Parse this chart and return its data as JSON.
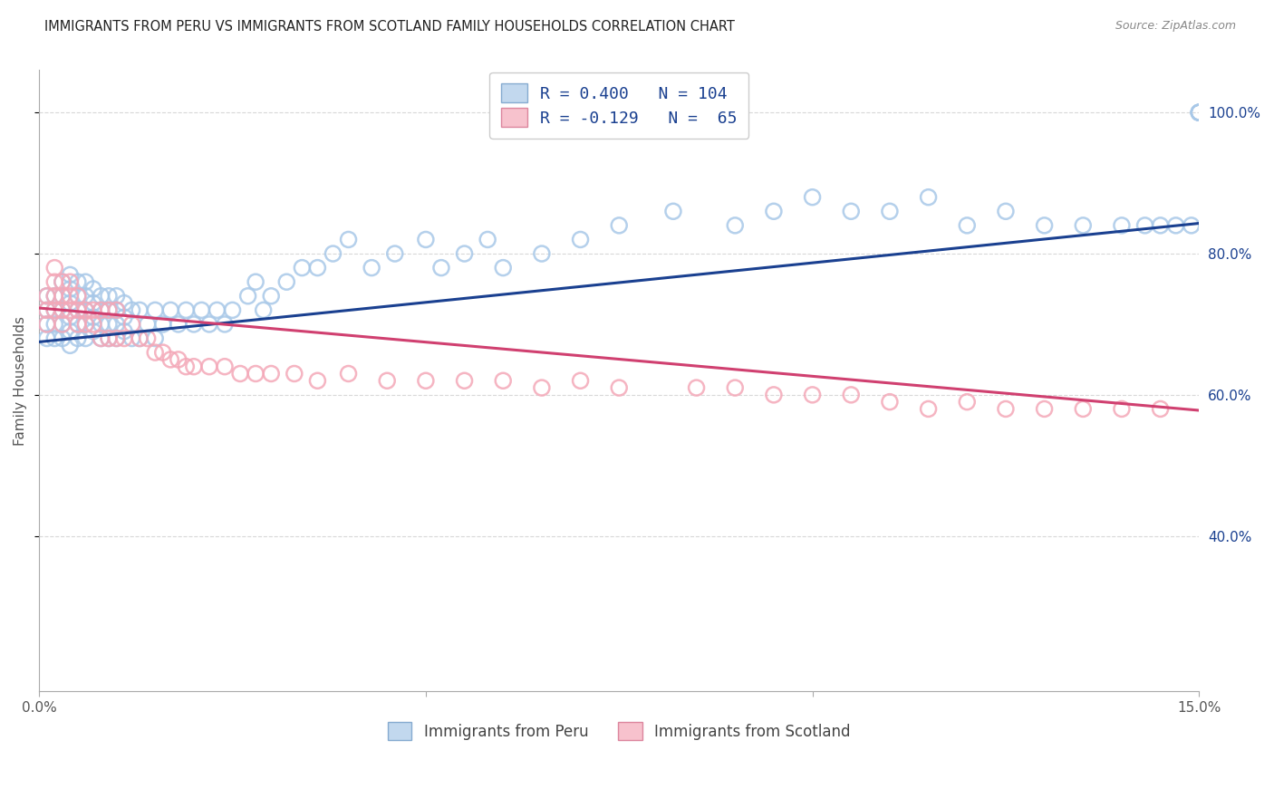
{
  "title": "IMMIGRANTS FROM PERU VS IMMIGRANTS FROM SCOTLAND FAMILY HOUSEHOLDS CORRELATION CHART",
  "source": "Source: ZipAtlas.com",
  "ylabel_text": "Family Households",
  "legend_blue_label": "Immigrants from Peru",
  "legend_pink_label": "Immigrants from Scotland",
  "R_blue": 0.4,
  "N_blue": 104,
  "R_pink": -0.129,
  "N_pink": 65,
  "blue_color": "#a8c8e8",
  "pink_color": "#f4a8b8",
  "blue_edge": "#6090c0",
  "pink_edge": "#d06080",
  "line_blue": "#1a4090",
  "line_pink": "#d04070",
  "title_color": "#222222",
  "source_color": "#888888",
  "axis_label_color": "#1a4090",
  "right_tick_color": "#1a4090",
  "background_color": "#ffffff",
  "grid_color": "#d8d8d8",
  "xlim": [
    0.0,
    0.15
  ],
  "ylim": [
    0.18,
    1.06
  ],
  "yticks": [
    0.4,
    0.6,
    0.8,
    1.0
  ],
  "ytick_labels": [
    "40.0%",
    "60.0%",
    "80.0%",
    "100.0%"
  ],
  "xticks": [
    0.0,
    0.05,
    0.1,
    0.15
  ],
  "xtick_labels": [
    "0.0%",
    "",
    "",
    "15.0%"
  ],
  "blue_line_x": [
    0.0,
    0.15
  ],
  "blue_line_y": [
    0.675,
    0.843
  ],
  "pink_line_x": [
    0.0,
    0.15
  ],
  "pink_line_y": [
    0.723,
    0.578
  ],
  "peru_x": [
    0.001,
    0.001,
    0.001,
    0.001,
    0.002,
    0.002,
    0.002,
    0.002,
    0.003,
    0.003,
    0.003,
    0.003,
    0.003,
    0.004,
    0.004,
    0.004,
    0.004,
    0.004,
    0.004,
    0.005,
    0.005,
    0.005,
    0.005,
    0.005,
    0.006,
    0.006,
    0.006,
    0.006,
    0.006,
    0.007,
    0.007,
    0.007,
    0.007,
    0.008,
    0.008,
    0.008,
    0.008,
    0.009,
    0.009,
    0.009,
    0.009,
    0.01,
    0.01,
    0.01,
    0.01,
    0.011,
    0.011,
    0.011,
    0.012,
    0.012,
    0.013,
    0.013,
    0.014,
    0.015,
    0.015,
    0.016,
    0.017,
    0.018,
    0.019,
    0.02,
    0.021,
    0.022,
    0.023,
    0.024,
    0.025,
    0.027,
    0.028,
    0.029,
    0.03,
    0.032,
    0.034,
    0.036,
    0.038,
    0.04,
    0.043,
    0.046,
    0.05,
    0.052,
    0.055,
    0.058,
    0.06,
    0.065,
    0.07,
    0.075,
    0.082,
    0.09,
    0.095,
    0.1,
    0.105,
    0.11,
    0.115,
    0.12,
    0.125,
    0.13,
    0.135,
    0.14,
    0.143,
    0.145,
    0.147,
    0.149,
    0.15,
    0.15,
    0.15,
    0.15
  ],
  "peru_y": [
    0.68,
    0.7,
    0.72,
    0.74,
    0.68,
    0.7,
    0.72,
    0.74,
    0.68,
    0.7,
    0.72,
    0.74,
    0.76,
    0.67,
    0.69,
    0.71,
    0.73,
    0.75,
    0.77,
    0.68,
    0.7,
    0.72,
    0.74,
    0.76,
    0.68,
    0.7,
    0.72,
    0.74,
    0.76,
    0.69,
    0.71,
    0.73,
    0.75,
    0.68,
    0.7,
    0.72,
    0.74,
    0.68,
    0.7,
    0.72,
    0.74,
    0.68,
    0.7,
    0.72,
    0.74,
    0.69,
    0.71,
    0.73,
    0.68,
    0.72,
    0.68,
    0.72,
    0.7,
    0.68,
    0.72,
    0.7,
    0.72,
    0.7,
    0.72,
    0.7,
    0.72,
    0.7,
    0.72,
    0.7,
    0.72,
    0.74,
    0.76,
    0.72,
    0.74,
    0.76,
    0.78,
    0.78,
    0.8,
    0.82,
    0.78,
    0.8,
    0.82,
    0.78,
    0.8,
    0.82,
    0.78,
    0.8,
    0.82,
    0.84,
    0.86,
    0.84,
    0.86,
    0.88,
    0.86,
    0.86,
    0.88,
    0.84,
    0.86,
    0.84,
    0.84,
    0.84,
    0.84,
    0.84,
    0.84,
    0.84,
    1.0,
    1.0,
    1.0,
    1.0
  ],
  "scotland_x": [
    0.001,
    0.001,
    0.001,
    0.002,
    0.002,
    0.002,
    0.002,
    0.003,
    0.003,
    0.003,
    0.003,
    0.004,
    0.004,
    0.004,
    0.005,
    0.005,
    0.005,
    0.006,
    0.006,
    0.007,
    0.007,
    0.008,
    0.008,
    0.009,
    0.009,
    0.01,
    0.01,
    0.011,
    0.012,
    0.013,
    0.014,
    0.015,
    0.016,
    0.017,
    0.018,
    0.019,
    0.02,
    0.022,
    0.024,
    0.026,
    0.028,
    0.03,
    0.033,
    0.036,
    0.04,
    0.045,
    0.05,
    0.055,
    0.06,
    0.065,
    0.07,
    0.075,
    0.085,
    0.09,
    0.095,
    0.1,
    0.105,
    0.11,
    0.115,
    0.12,
    0.125,
    0.13,
    0.135,
    0.14,
    0.145
  ],
  "scotland_y": [
    0.7,
    0.72,
    0.74,
    0.72,
    0.74,
    0.76,
    0.78,
    0.7,
    0.72,
    0.74,
    0.76,
    0.72,
    0.74,
    0.76,
    0.7,
    0.72,
    0.74,
    0.7,
    0.72,
    0.7,
    0.72,
    0.68,
    0.72,
    0.68,
    0.72,
    0.68,
    0.72,
    0.68,
    0.7,
    0.68,
    0.68,
    0.66,
    0.66,
    0.65,
    0.65,
    0.64,
    0.64,
    0.64,
    0.64,
    0.63,
    0.63,
    0.63,
    0.63,
    0.62,
    0.63,
    0.62,
    0.62,
    0.62,
    0.62,
    0.61,
    0.62,
    0.61,
    0.61,
    0.61,
    0.6,
    0.6,
    0.6,
    0.59,
    0.58,
    0.59,
    0.58,
    0.58,
    0.58,
    0.58,
    0.58
  ]
}
